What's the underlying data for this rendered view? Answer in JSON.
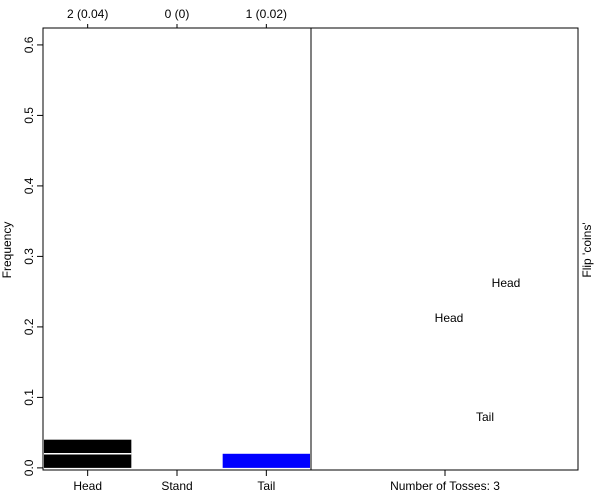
{
  "chart_data": {
    "type": "bar",
    "ylabel": "Frequency",
    "categories": [
      "Head",
      "Stand",
      "Tail"
    ],
    "values": [
      0.04,
      0,
      0.02
    ],
    "value_labels": [
      "2 (0.04)",
      "0 (0)",
      "1 (0.02)"
    ],
    "dividers": [
      [
        0.02
      ],
      [],
      []
    ],
    "colors": [
      "#000000",
      "#ffffff",
      "#0000ff"
    ],
    "ylim": [
      -0.003,
      0.624
    ],
    "yticks": [
      {
        "value": 0,
        "label": "0.0"
      },
      0.1,
      0.2,
      0.3,
      0.4,
      0.5,
      0.6
    ],
    "right_panel": {
      "xlabel": "Number of Tosses: 3",
      "side_label": "Flip 'coins'",
      "coins": [
        {
          "label": "Head",
          "color": "#000000"
        },
        {
          "label": "Head",
          "color": "#000000"
        },
        {
          "label": "Tail",
          "color": "#0000ff"
        }
      ]
    }
  }
}
